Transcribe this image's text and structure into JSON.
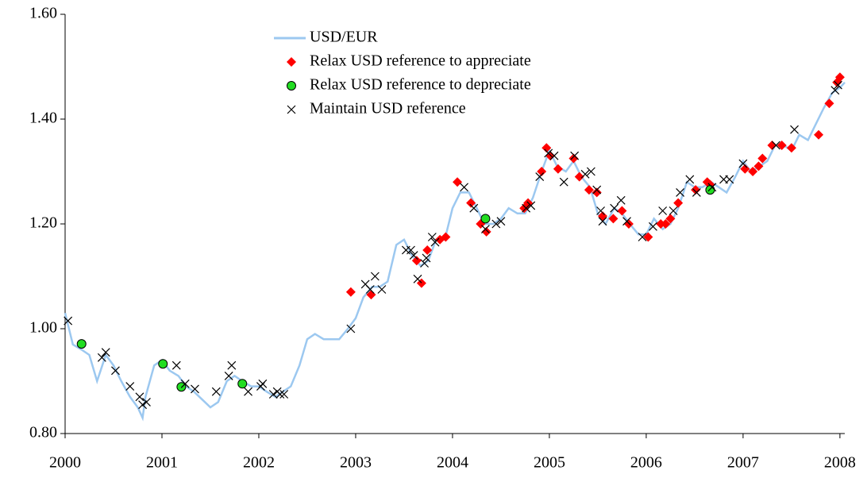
{
  "chart_data": {
    "type": "line",
    "xlim": [
      2000,
      2008.05
    ],
    "xticks": [
      2000,
      2001,
      2002,
      2003,
      2004,
      2005,
      2006,
      2007,
      2008
    ],
    "ylim": [
      0.8,
      1.6
    ],
    "yticks": [
      {
        "value": 0.8,
        "label": "0.80"
      },
      {
        "value": 1.0,
        "label": "1.00"
      },
      {
        "value": 1.2,
        "label": "1.20"
      },
      {
        "value": 1.4,
        "label": "1.40"
      },
      {
        "value": 1.6,
        "label": "1.60"
      }
    ],
    "grid": false,
    "legend": "upper center",
    "series": [
      {
        "name": "USD/EUR",
        "marker": "line",
        "color": "#9cc8f0",
        "x": [
          2000.0,
          2000.08,
          2000.17,
          2000.25,
          2000.33,
          2000.42,
          2000.5,
          2000.58,
          2000.67,
          2000.75,
          2000.8,
          2000.83,
          2000.92,
          2001.0,
          2001.08,
          2001.17,
          2001.25,
          2001.33,
          2001.5,
          2001.58,
          2001.67,
          2001.75,
          2001.83,
          2001.92,
          2002.0,
          2002.08,
          2002.17,
          2002.25,
          2002.33,
          2002.42,
          2002.5,
          2002.58,
          2002.67,
          2002.75,
          2002.83,
          2002.92,
          2003.0,
          2003.08,
          2003.17,
          2003.25,
          2003.33,
          2003.42,
          2003.5,
          2003.58,
          2003.67,
          2003.75,
          2003.83,
          2003.92,
          2004.0,
          2004.08,
          2004.17,
          2004.25,
          2004.33,
          2004.42,
          2004.5,
          2004.58,
          2004.67,
          2004.75,
          2004.83,
          2004.92,
          2005.0,
          2005.08,
          2005.17,
          2005.25,
          2005.33,
          2005.42,
          2005.5,
          2005.58,
          2005.67,
          2005.75,
          2005.83,
          2005.92,
          2006.0,
          2006.08,
          2006.17,
          2006.25,
          2006.33,
          2006.42,
          2006.5,
          2006.58,
          2006.67,
          2006.75,
          2006.83,
          2006.92,
          2007.0,
          2007.08,
          2007.17,
          2007.25,
          2007.33,
          2007.42,
          2007.5,
          2007.58,
          2007.67,
          2007.75,
          2007.83,
          2007.92,
          2008.0,
          2008.05
        ],
        "values": [
          1.03,
          0.97,
          0.96,
          0.95,
          0.9,
          0.95,
          0.93,
          0.9,
          0.87,
          0.85,
          0.83,
          0.87,
          0.93,
          0.94,
          0.92,
          0.91,
          0.89,
          0.88,
          0.85,
          0.86,
          0.9,
          0.91,
          0.9,
          0.89,
          0.89,
          0.88,
          0.87,
          0.88,
          0.89,
          0.93,
          0.98,
          0.99,
          0.98,
          0.98,
          0.98,
          1.0,
          1.02,
          1.06,
          1.08,
          1.08,
          1.09,
          1.16,
          1.17,
          1.14,
          1.12,
          1.13,
          1.17,
          1.17,
          1.23,
          1.26,
          1.26,
          1.23,
          1.2,
          1.2,
          1.21,
          1.23,
          1.22,
          1.22,
          1.25,
          1.3,
          1.34,
          1.31,
          1.3,
          1.32,
          1.29,
          1.27,
          1.22,
          1.2,
          1.23,
          1.22,
          1.2,
          1.18,
          1.18,
          1.21,
          1.19,
          1.2,
          1.23,
          1.28,
          1.27,
          1.27,
          1.28,
          1.27,
          1.26,
          1.29,
          1.32,
          1.3,
          1.31,
          1.32,
          1.35,
          1.35,
          1.34,
          1.37,
          1.36,
          1.39,
          1.42,
          1.45,
          1.46,
          1.47
        ]
      },
      {
        "name": "Relax USD reference to appreciate",
        "marker": "diamond",
        "color": "#ff0000",
        "x": [
          2002.95,
          2003.16,
          2003.63,
          2003.68,
          2003.74,
          2003.87,
          2003.93,
          2004.05,
          2004.19,
          2004.29,
          2004.35,
          2004.74,
          2004.78,
          2004.92,
          2004.97,
          2005.01,
          2005.09,
          2005.25,
          2005.31,
          2005.41,
          2005.49,
          2005.55,
          2005.66,
          2005.75,
          2005.82,
          2006.02,
          2006.15,
          2006.2,
          2006.25,
          2006.33,
          2006.51,
          2006.63,
          2006.66,
          2007.02,
          2007.1,
          2007.16,
          2007.2,
          2007.3,
          2007.4,
          2007.5,
          2007.78,
          2007.89,
          2007.97,
          2008.0
        ],
        "values": [
          1.07,
          1.065,
          1.13,
          1.087,
          1.15,
          1.17,
          1.175,
          1.28,
          1.24,
          1.2,
          1.185,
          1.23,
          1.24,
          1.3,
          1.345,
          1.33,
          1.305,
          1.325,
          1.29,
          1.265,
          1.26,
          1.215,
          1.21,
          1.225,
          1.2,
          1.175,
          1.2,
          1.2,
          1.21,
          1.24,
          1.265,
          1.28,
          1.275,
          1.305,
          1.3,
          1.31,
          1.325,
          1.35,
          1.35,
          1.345,
          1.37,
          1.43,
          1.47,
          1.48
        ]
      },
      {
        "name": "Relax USD reference to depreciate",
        "marker": "circle",
        "color": "#22dd22",
        "x": [
          2000.17,
          2001.01,
          2001.2,
          2001.83,
          2004.34,
          2006.66
        ],
        "values": [
          0.971,
          0.933,
          0.889,
          0.895,
          1.21,
          1.265
        ]
      },
      {
        "name": "Maintain USD reference",
        "marker": "x",
        "color": "#000000",
        "x": [
          2000.03,
          2000.38,
          2000.42,
          2000.52,
          2000.67,
          2000.77,
          2000.8,
          2000.84,
          2001.15,
          2001.24,
          2001.34,
          2001.56,
          2001.69,
          2001.72,
          2001.89,
          2002.02,
          2002.04,
          2002.15,
          2002.19,
          2002.22,
          2002.26,
          2002.95,
          2003.1,
          2003.15,
          2003.2,
          2003.27,
          2003.52,
          2003.57,
          2003.6,
          2003.64,
          2003.71,
          2003.73,
          2003.79,
          2003.82,
          2004.12,
          2004.22,
          2004.34,
          2004.45,
          2004.5,
          2004.76,
          2004.81,
          2004.9,
          2004.99,
          2005.05,
          2005.15,
          2005.26,
          2005.37,
          2005.43,
          2005.49,
          2005.53,
          2005.55,
          2005.67,
          2005.74,
          2005.8,
          2005.96,
          2006.07,
          2006.17,
          2006.28,
          2006.35,
          2006.45,
          2006.52,
          2006.68,
          2006.8,
          2006.86,
          2007.0,
          2007.34,
          2007.53,
          2007.95,
          2007.98
        ],
        "values": [
          1.015,
          0.945,
          0.955,
          0.92,
          0.89,
          0.87,
          0.855,
          0.86,
          0.93,
          0.895,
          0.885,
          0.88,
          0.91,
          0.93,
          0.88,
          0.89,
          0.895,
          0.875,
          0.88,
          0.875,
          0.875,
          1.0,
          1.085,
          1.075,
          1.1,
          1.075,
          1.15,
          1.15,
          1.14,
          1.095,
          1.125,
          1.135,
          1.175,
          1.165,
          1.27,
          1.23,
          1.19,
          1.2,
          1.205,
          1.23,
          1.235,
          1.29,
          1.335,
          1.33,
          1.28,
          1.33,
          1.295,
          1.3,
          1.265,
          1.225,
          1.205,
          1.23,
          1.245,
          1.205,
          1.175,
          1.195,
          1.225,
          1.225,
          1.26,
          1.285,
          1.26,
          1.27,
          1.285,
          1.285,
          1.315,
          1.35,
          1.38,
          1.455,
          1.465
        ]
      }
    ]
  }
}
